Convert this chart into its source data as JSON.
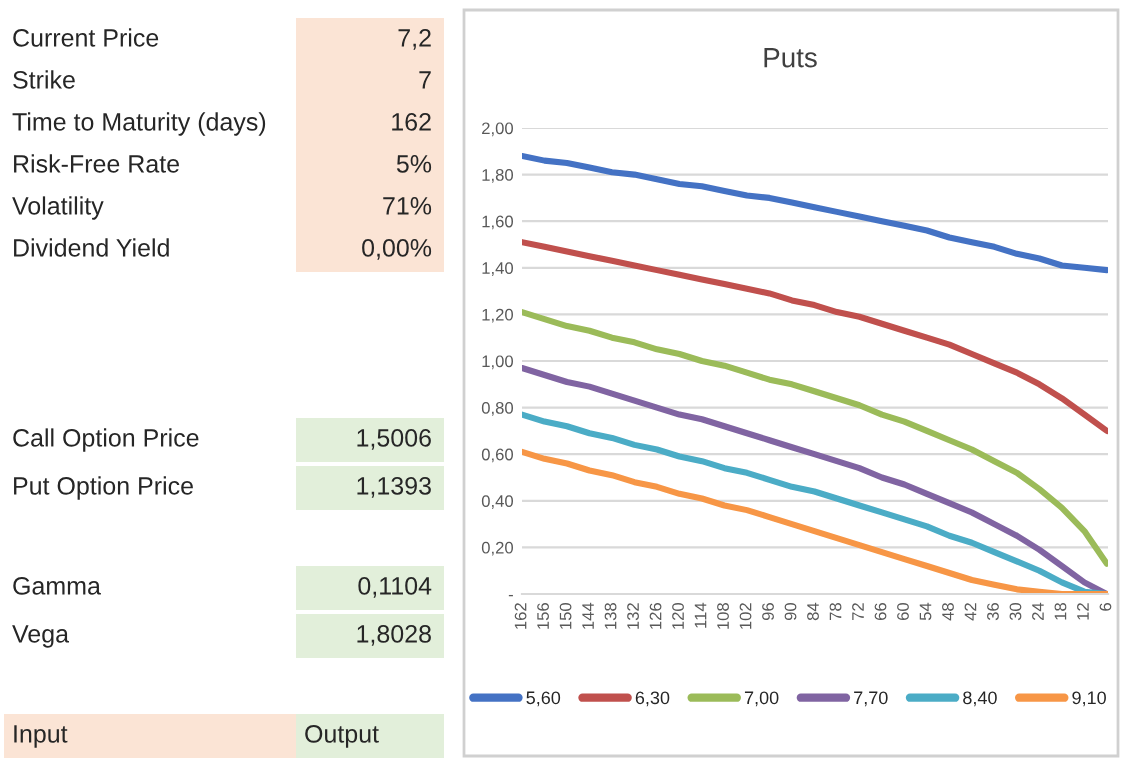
{
  "chart_data": [
    {
      "type": "other",
      "annotations": [
        "Current Price",
        "7,2",
        "Strike",
        "7",
        "Time to Maturity (days)",
        "162",
        "Risk-Free Rate",
        "5%",
        "Volatility",
        "71%",
        "Dividend Yield",
        "0,00%",
        "Call Option Price",
        "1,5006",
        "Put Option Price",
        "1,1393",
        "Gamma",
        "0,1104",
        "Vega",
        "1,8028",
        "Input",
        "Output"
      ]
    },
    {
      "type": "line",
      "title": "Puts",
      "categories": [
        "162",
        "156",
        "150",
        "144",
        "138",
        "132",
        "126",
        "120",
        "114",
        "108",
        "102",
        "96",
        "90",
        "84",
        "78",
        "72",
        "66",
        "60",
        "54",
        "48",
        "42",
        "36",
        "30",
        "24",
        "18",
        "12",
        "6"
      ],
      "ylim": [
        0,
        2.0
      ],
      "yticks": [
        {
          "value": 0,
          "label": "-"
        },
        {
          "value": 0.2,
          "label": "0,20"
        },
        {
          "value": 0.4,
          "label": "0,40"
        },
        {
          "value": 0.6,
          "label": "0,60"
        },
        {
          "value": 0.8,
          "label": "0,80"
        },
        {
          "value": 1.0,
          "label": "1,00"
        },
        {
          "value": 1.2,
          "label": "1,20"
        },
        {
          "value": 1.4,
          "label": "1,40"
        },
        {
          "value": 1.6,
          "label": "1,60"
        },
        {
          "value": 1.8,
          "label": "1,80"
        },
        {
          "value": 2.0,
          "label": "2,00"
        }
      ],
      "grid": "y",
      "legend": "bottom",
      "marker": "none",
      "line_style": "solid",
      "series": [
        {
          "name": "5,60",
          "color": "#4472c4",
          "values": [
            1.88,
            1.86,
            1.85,
            1.83,
            1.81,
            1.8,
            1.78,
            1.76,
            1.75,
            1.73,
            1.71,
            1.7,
            1.68,
            1.66,
            1.64,
            1.62,
            1.6,
            1.58,
            1.56,
            1.53,
            1.51,
            1.49,
            1.46,
            1.44,
            1.41,
            1.4,
            1.39
          ]
        },
        {
          "name": "6,30",
          "color": "#c0504d",
          "values": [
            1.51,
            1.49,
            1.47,
            1.45,
            1.43,
            1.41,
            1.39,
            1.37,
            1.35,
            1.33,
            1.31,
            1.29,
            1.26,
            1.24,
            1.21,
            1.19,
            1.16,
            1.13,
            1.1,
            1.07,
            1.03,
            0.99,
            0.95,
            0.9,
            0.84,
            0.77,
            0.7
          ]
        },
        {
          "name": "7,00",
          "color": "#9bbb59",
          "values": [
            1.21,
            1.18,
            1.15,
            1.13,
            1.1,
            1.08,
            1.05,
            1.03,
            1.0,
            0.98,
            0.95,
            0.92,
            0.9,
            0.87,
            0.84,
            0.81,
            0.77,
            0.74,
            0.7,
            0.66,
            0.62,
            0.57,
            0.52,
            0.45,
            0.37,
            0.27,
            0.13
          ]
        },
        {
          "name": "7,70",
          "color": "#8064a2",
          "values": [
            0.97,
            0.94,
            0.91,
            0.89,
            0.86,
            0.83,
            0.8,
            0.77,
            0.75,
            0.72,
            0.69,
            0.66,
            0.63,
            0.6,
            0.57,
            0.54,
            0.5,
            0.47,
            0.43,
            0.39,
            0.35,
            0.3,
            0.25,
            0.19,
            0.12,
            0.05,
            0.0
          ]
        },
        {
          "name": "8,40",
          "color": "#4bacc6",
          "values": [
            0.77,
            0.74,
            0.72,
            0.69,
            0.67,
            0.64,
            0.62,
            0.59,
            0.57,
            0.54,
            0.52,
            0.49,
            0.46,
            0.44,
            0.41,
            0.38,
            0.35,
            0.32,
            0.29,
            0.25,
            0.22,
            0.18,
            0.14,
            0.1,
            0.05,
            0.01,
            0.0
          ]
        },
        {
          "name": "9,10",
          "color": "#f79646",
          "values": [
            0.61,
            0.58,
            0.56,
            0.53,
            0.51,
            0.48,
            0.46,
            0.43,
            0.41,
            0.38,
            0.36,
            0.33,
            0.3,
            0.27,
            0.24,
            0.21,
            0.18,
            0.15,
            0.12,
            0.09,
            0.06,
            0.04,
            0.02,
            0.01,
            0.0,
            0.0,
            0.0
          ]
        }
      ]
    }
  ]
}
